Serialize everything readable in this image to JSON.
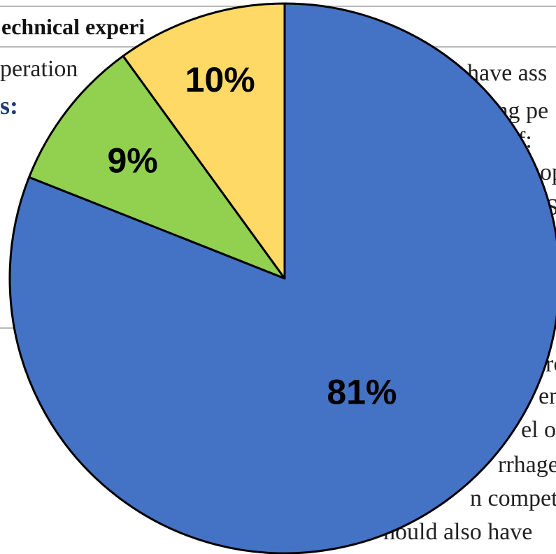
{
  "background_document": {
    "heading_fragment": "echnical experi",
    "lines": [
      "peration",
      "s:",
      "have ass",
      "ing pe",
      "f:",
      "op",
      "S",
      "rc",
      "en",
      "el ol",
      "rrhage",
      "n compet",
      "hould also have"
    ]
  },
  "chart_data": {
    "type": "pie",
    "title": "",
    "start_angle_deg": 0,
    "direction": "clockwise",
    "slices": [
      {
        "value": 81,
        "label": "81%",
        "color": "#4472c4"
      },
      {
        "value": 9,
        "label": "9%",
        "color": "#92d050"
      },
      {
        "value": 10,
        "label": "10%",
        "color": "#ffd966"
      }
    ],
    "legend": "none"
  }
}
